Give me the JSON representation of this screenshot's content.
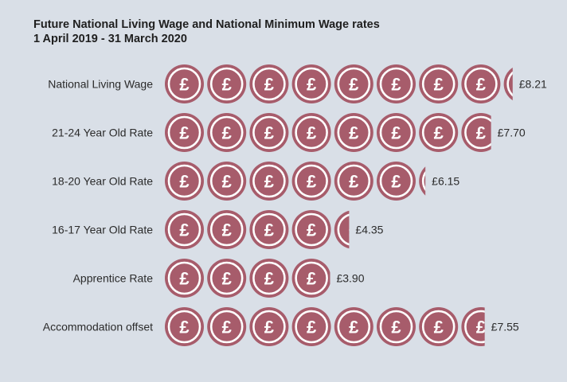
{
  "chart_data": {
    "type": "bar",
    "title": "Future National Living Wage and National Minimum Wage rates",
    "subtitle": "1 April 2019 - 31 March 2020",
    "categories": [
      "National Living Wage",
      "21-24 Year Old Rate",
      "18-20 Year Old Rate",
      "16-17 Year Old Rate",
      "Apprentice Rate",
      "Accommodation offset"
    ],
    "values": [
      8.21,
      7.7,
      6.15,
      4.35,
      3.9,
      7.55
    ],
    "value_labels": [
      "£8.21",
      "£7.70",
      "£6.15",
      "£4.35",
      "£3.90",
      "£7.55"
    ],
    "icon": "pound-coin-icon",
    "icon_unit_value": 1,
    "icon_glyph": "£",
    "colors": {
      "coin": "#a75c6b",
      "coin_ring": "#ffffff",
      "background": "#d9dfe7",
      "text": "#2b2b2b"
    }
  }
}
